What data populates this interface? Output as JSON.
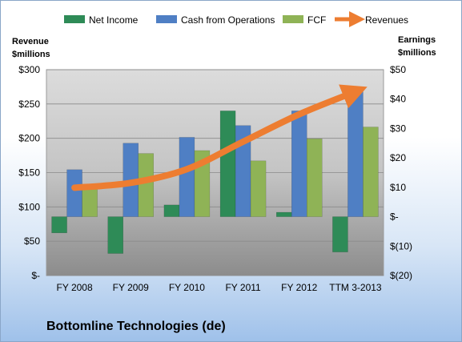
{
  "chart_data": {
    "type": "bar",
    "title": "Bottomline Technologies (de)",
    "categories": [
      "FY 2008",
      "FY 2009",
      "FY 2010",
      "FY 2011",
      "FY 2012",
      "TTM 3-2013"
    ],
    "left_axis": {
      "label_line1": "Revenue",
      "label_line2": "$millions",
      "range": [
        0,
        300
      ],
      "ticks": [
        {
          "value": 0,
          "label": "$-"
        },
        {
          "value": 50,
          "label": "$50"
        },
        {
          "value": 100,
          "label": "$100"
        },
        {
          "value": 150,
          "label": "$150"
        },
        {
          "value": 200,
          "label": "$200"
        },
        {
          "value": 250,
          "label": "$250"
        },
        {
          "value": 300,
          "label": "$300"
        }
      ]
    },
    "right_axis": {
      "label_line1": "Earnings",
      "label_line2": "$millions",
      "range": [
        -20,
        50
      ],
      "ticks": [
        {
          "value": -20,
          "label": "$(20)"
        },
        {
          "value": -10,
          "label": "$(10)"
        },
        {
          "value": 0,
          "label": "$-"
        },
        {
          "value": 10,
          "label": "$10"
        },
        {
          "value": 20,
          "label": "$20"
        },
        {
          "value": 30,
          "label": "$30"
        },
        {
          "value": 40,
          "label": "$40"
        },
        {
          "value": 50,
          "label": "$50"
        }
      ]
    },
    "bar_series": [
      {
        "name": "Net Income",
        "color": "#2e8b57",
        "axis": "right",
        "values": [
          -5.5,
          -12.5,
          4,
          36,
          1.5,
          -12
        ]
      },
      {
        "name": "Cash from Operations",
        "color": "#4f7fc4",
        "axis": "right",
        "values": [
          16,
          25,
          27,
          31,
          36,
          43
        ]
      },
      {
        "name": "FCF",
        "color": "#8fb356",
        "axis": "right",
        "values": [
          11,
          21.5,
          22.5,
          19,
          26.5,
          30.5
        ]
      }
    ],
    "line_series": [
      {
        "name": "Revenues",
        "color": "#ed7d31",
        "axis": "left",
        "values": [
          128,
          135,
          155,
          195,
          235,
          268
        ]
      }
    ],
    "grid": true,
    "legend_position": "top"
  }
}
